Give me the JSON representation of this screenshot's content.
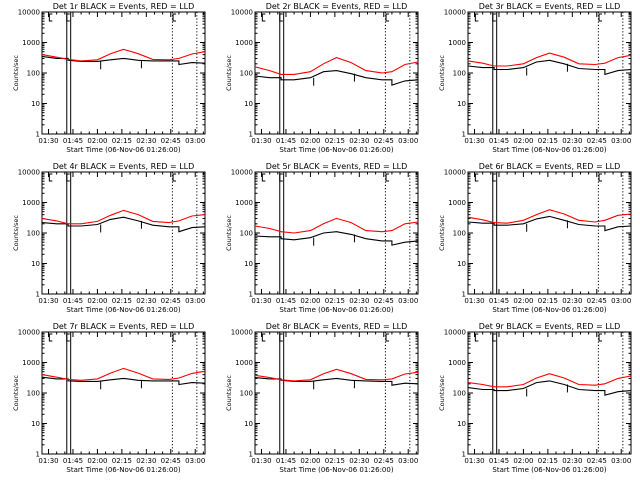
{
  "figure": {
    "ylabel": "Counts/sec",
    "xlabel": "Start Time (06-Nov-06 01:26:00)",
    "ytick_labels": [
      "1",
      "10",
      "100",
      "1000",
      "10000"
    ],
    "xtick_labels": [
      "01:30",
      "01:45",
      "02:00",
      "02:15",
      "02:30",
      "02:45",
      "03:00"
    ],
    "colors": {
      "events": "#000000",
      "lld": "#ff0000"
    }
  },
  "chart_data": [
    {
      "type": "line",
      "title": "Det 1r BLACK = Events, RED = LLD",
      "xlabel": "Start Time (06-Nov-06 01:26:00)",
      "ylabel": "Counts/sec",
      "y_scale": "log",
      "ylim": [
        1,
        10000
      ],
      "x_range": [
        "01:26",
        "03:06"
      ],
      "x": [
        "01:26",
        "01:35",
        "01:42",
        "01:50",
        "02:00",
        "02:08",
        "02:16",
        "02:25",
        "02:34",
        "02:44",
        "02:50",
        "02:58",
        "03:06"
      ],
      "series": [
        {
          "name": "Events",
          "values": [
            350,
            300,
            260,
            240,
            240,
            270,
            300,
            260,
            250,
            250,
            190,
            220,
            210
          ]
        },
        {
          "name": "LLD",
          "values": [
            400,
            330,
            280,
            250,
            270,
            430,
            600,
            430,
            280,
            270,
            300,
            420,
            500
          ]
        }
      ]
    },
    {
      "type": "line",
      "title": "Det 2r BLACK = Events, RED = LLD",
      "xlabel": "Start Time (06-Nov-06 01:26:00)",
      "ylabel": "Counts/sec",
      "y_scale": "log",
      "ylim": [
        1,
        10000
      ],
      "x_range": [
        "01:26",
        "03:06"
      ],
      "x": [
        "01:26",
        "01:35",
        "01:42",
        "01:50",
        "02:00",
        "02:08",
        "02:16",
        "02:25",
        "02:34",
        "02:44",
        "02:50",
        "02:58",
        "03:06"
      ],
      "series": [
        {
          "name": "Events",
          "values": [
            80,
            70,
            60,
            60,
            70,
            110,
            120,
            95,
            70,
            60,
            40,
            55,
            60
          ]
        },
        {
          "name": "LLD",
          "values": [
            160,
            120,
            90,
            90,
            110,
            200,
            320,
            220,
            120,
            100,
            110,
            190,
            230
          ]
        }
      ]
    },
    {
      "type": "line",
      "title": "Det 3r BLACK = Events, RED = LLD",
      "xlabel": "Start Time (06-Nov-06 01:26:00)",
      "ylabel": "Counts/sec",
      "y_scale": "log",
      "ylim": [
        1,
        10000
      ],
      "x_range": [
        "01:26",
        "03:06"
      ],
      "x": [
        "01:26",
        "01:35",
        "01:42",
        "01:50",
        "02:00",
        "02:08",
        "02:16",
        "02:25",
        "02:34",
        "02:44",
        "02:50",
        "02:58",
        "03:06"
      ],
      "series": [
        {
          "name": "Events",
          "values": [
            170,
            150,
            130,
            130,
            150,
            230,
            260,
            200,
            140,
            130,
            90,
            120,
            130
          ]
        },
        {
          "name": "LLD",
          "values": [
            250,
            210,
            170,
            170,
            200,
            320,
            450,
            330,
            200,
            190,
            210,
            320,
            380
          ]
        }
      ]
    },
    {
      "type": "line",
      "title": "Det 4r BLACK = Events, RED = LLD",
      "xlabel": "Start Time (06-Nov-06 01:26:00)",
      "ylabel": "Counts/sec",
      "y_scale": "log",
      "ylim": [
        1,
        10000
      ],
      "x_range": [
        "01:26",
        "03:06"
      ],
      "x": [
        "01:26",
        "01:35",
        "01:42",
        "01:50",
        "02:00",
        "02:08",
        "02:16",
        "02:25",
        "02:34",
        "02:44",
        "02:50",
        "02:58",
        "03:06"
      ],
      "series": [
        {
          "name": "Events",
          "values": [
            220,
            200,
            170,
            170,
            190,
            280,
            330,
            250,
            180,
            160,
            110,
            150,
            160
          ]
        },
        {
          "name": "LLD",
          "values": [
            300,
            250,
            200,
            200,
            240,
            380,
            550,
            400,
            240,
            220,
            250,
            360,
            400
          ]
        }
      ]
    },
    {
      "type": "line",
      "title": "Det 5r BLACK = Events, RED = LLD",
      "xlabel": "Start Time (06-Nov-06 01:26:00)",
      "ylabel": "Counts/sec",
      "y_scale": "log",
      "ylim": [
        1,
        10000
      ],
      "x_range": [
        "01:26",
        "03:06"
      ],
      "x": [
        "01:26",
        "01:35",
        "01:42",
        "01:50",
        "02:00",
        "02:08",
        "02:16",
        "02:25",
        "02:34",
        "02:44",
        "02:50",
        "02:58",
        "03:06"
      ],
      "series": [
        {
          "name": "Events",
          "values": [
            80,
            75,
            65,
            60,
            70,
            100,
            110,
            90,
            65,
            55,
            40,
            50,
            55
          ]
        },
        {
          "name": "LLD",
          "values": [
            170,
            140,
            110,
            100,
            120,
            200,
            300,
            220,
            120,
            110,
            120,
            200,
            230
          ]
        }
      ]
    },
    {
      "type": "line",
      "title": "Det 6r BLACK = Events, RED = LLD",
      "xlabel": "Start Time (06-Nov-06 01:26:00)",
      "ylabel": "Counts/sec",
      "y_scale": "log",
      "ylim": [
        1,
        10000
      ],
      "x_range": [
        "01:26",
        "03:06"
      ],
      "x": [
        "01:26",
        "01:35",
        "01:42",
        "01:50",
        "02:00",
        "02:08",
        "02:16",
        "02:25",
        "02:34",
        "02:44",
        "02:50",
        "02:58",
        "03:06"
      ],
      "series": [
        {
          "name": "Events",
          "values": [
            230,
            210,
            180,
            180,
            200,
            290,
            350,
            260,
            190,
            170,
            120,
            160,
            170
          ]
        },
        {
          "name": "LLD",
          "values": [
            330,
            270,
            220,
            210,
            260,
            400,
            580,
            420,
            260,
            230,
            260,
            380,
            420
          ]
        }
      ]
    },
    {
      "type": "line",
      "title": "Det 7r BLACK = Events, RED = LLD",
      "xlabel": "Start Time (06-Nov-06 01:26:00)",
      "ylabel": "Counts/sec",
      "y_scale": "log",
      "ylim": [
        1,
        10000
      ],
      "x_range": [
        "01:26",
        "03:06"
      ],
      "x": [
        "01:26",
        "01:35",
        "01:42",
        "01:50",
        "02:00",
        "02:08",
        "02:16",
        "02:25",
        "02:34",
        "02:44",
        "02:50",
        "02:58",
        "03:06"
      ],
      "series": [
        {
          "name": "Events",
          "values": [
            330,
            290,
            250,
            240,
            240,
            270,
            300,
            260,
            250,
            250,
            190,
            220,
            210
          ]
        },
        {
          "name": "LLD",
          "values": [
            400,
            330,
            280,
            260,
            290,
            450,
            640,
            450,
            290,
            280,
            310,
            440,
            520
          ]
        }
      ]
    },
    {
      "type": "line",
      "title": "Det 8r BLACK = Events, RED = LLD",
      "xlabel": "Start Time (06-Nov-06 01:26:00)",
      "ylabel": "Counts/sec",
      "y_scale": "log",
      "ylim": [
        1,
        10000
      ],
      "x_range": [
        "01:26",
        "03:06"
      ],
      "x": [
        "01:26",
        "01:35",
        "01:42",
        "01:50",
        "02:00",
        "02:08",
        "02:16",
        "02:25",
        "02:34",
        "02:44",
        "02:50",
        "02:58",
        "03:06"
      ],
      "series": [
        {
          "name": "Events",
          "values": [
            320,
            290,
            260,
            240,
            240,
            270,
            300,
            260,
            250,
            240,
            180,
            210,
            200
          ]
        },
        {
          "name": "LLD",
          "values": [
            380,
            320,
            270,
            250,
            270,
            430,
            600,
            430,
            280,
            270,
            290,
            420,
            480
          ]
        }
      ]
    },
    {
      "type": "line",
      "title": "Det 9r BLACK = Events, RED = LLD",
      "xlabel": "Start Time (06-Nov-06 01:26:00)",
      "ylabel": "Counts/sec",
      "y_scale": "log",
      "ylim": [
        1,
        10000
      ],
      "x_range": [
        "01:26",
        "03:06"
      ],
      "x": [
        "01:26",
        "01:35",
        "01:42",
        "01:50",
        "02:00",
        "02:08",
        "02:16",
        "02:25",
        "02:34",
        "02:44",
        "02:50",
        "02:58",
        "03:06"
      ],
      "series": [
        {
          "name": "Events",
          "values": [
            150,
            130,
            120,
            120,
            140,
            220,
            250,
            190,
            130,
            120,
            85,
            110,
            120
          ]
        },
        {
          "name": "LLD",
          "values": [
            220,
            190,
            160,
            160,
            190,
            310,
            430,
            310,
            190,
            180,
            200,
            300,
            360
          ]
        }
      ]
    }
  ]
}
